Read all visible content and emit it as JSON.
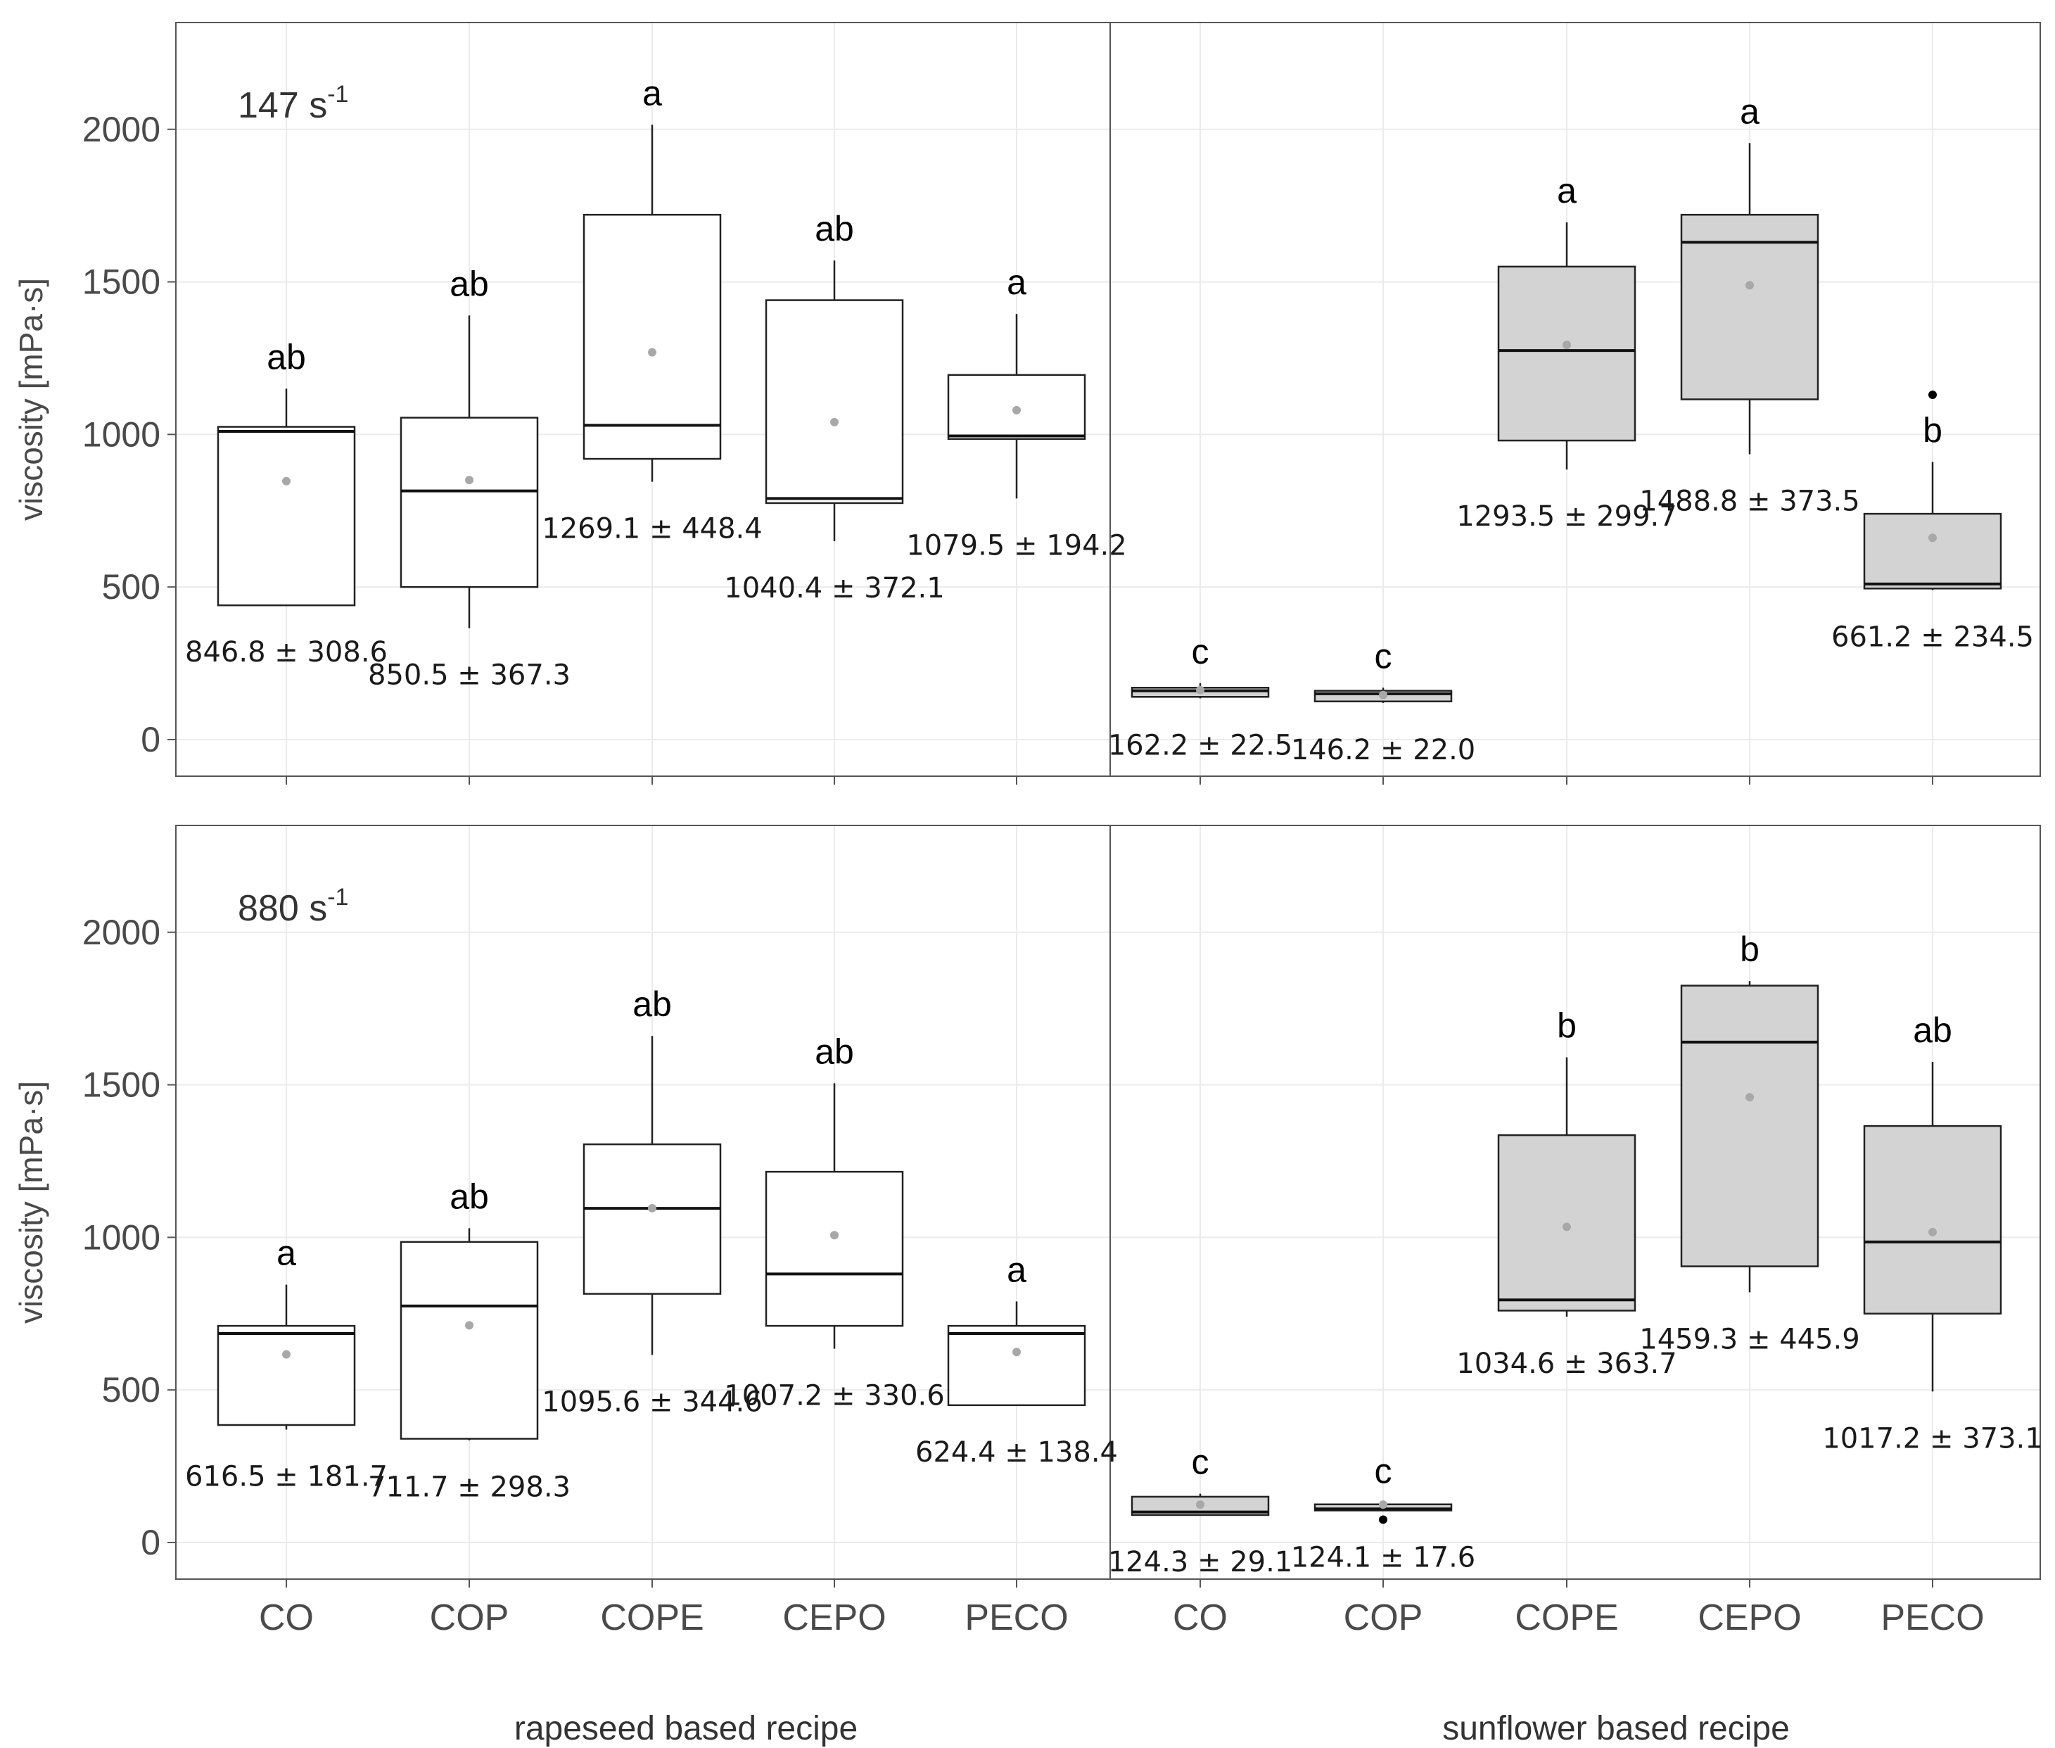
{
  "chart_data": {
    "type": "boxplot",
    "ylabel": "viscosity [mPa·s]",
    "ylim": [
      -120,
      2350
    ],
    "y_ticks": [
      0,
      500,
      1000,
      1500,
      2000
    ],
    "x_categories": [
      "CO",
      "COP",
      "COPE",
      "CEPO",
      "PECO",
      "CO",
      "COP",
      "COPE",
      "CEPO",
      "PECO"
    ],
    "groups": [
      {
        "name": "rapeseed based recipe",
        "fill": "#ffffff"
      },
      {
        "name": "sunflower based recipe",
        "fill": "#d3d3d3"
      }
    ],
    "colors": {
      "sunflower_fill": "#d3d3d3",
      "rapeseed_fill": "#ffffff",
      "mean_dot": "#a8a8a8",
      "grid": "#ebebeb"
    },
    "panels": [
      {
        "rate": "147 s",
        "rate_sup": "-1",
        "boxes": [
          {
            "group": 0,
            "category": "CO",
            "whisker_low": 440,
            "q1": 440,
            "median": 1010,
            "q3": 1025,
            "whisker_high": 1150,
            "mean": 846.8,
            "label": "846.8 ± 308.6",
            "letter": "ab",
            "outliers": []
          },
          {
            "group": 0,
            "category": "COP",
            "whisker_low": 365,
            "q1": 500,
            "median": 815,
            "q3": 1055,
            "whisker_high": 1390,
            "mean": 850.5,
            "label": "850.5 ± 367.3",
            "letter": "ab",
            "outliers": []
          },
          {
            "group": 0,
            "category": "COPE",
            "whisker_low": 845,
            "q1": 920,
            "median": 1030,
            "q3": 1720,
            "whisker_high": 2015,
            "mean": 1269.1,
            "label": "1269.1 ± 448.4",
            "letter": "a",
            "outliers": []
          },
          {
            "group": 0,
            "category": "CEPO",
            "whisker_low": 650,
            "q1": 775,
            "median": 790,
            "q3": 1440,
            "whisker_high": 1570,
            "mean": 1040.4,
            "label": "1040.4 ± 372.1",
            "letter": "ab",
            "outliers": []
          },
          {
            "group": 0,
            "category": "PECO",
            "whisker_low": 790,
            "q1": 985,
            "median": 995,
            "q3": 1195,
            "whisker_high": 1395,
            "mean": 1079.5,
            "label": "1079.5 ± 194.2",
            "letter": "a",
            "outliers": []
          },
          {
            "group": 1,
            "category": "CO",
            "whisker_low": 135,
            "q1": 140,
            "median": 160,
            "q3": 170,
            "whisker_high": 185,
            "mean": 162.2,
            "label": "162.2 ± 22.5",
            "letter": "c",
            "outliers": []
          },
          {
            "group": 1,
            "category": "COP",
            "whisker_low": 120,
            "q1": 125,
            "median": 150,
            "q3": 160,
            "whisker_high": 170,
            "mean": 146.2,
            "label": "146.2 ± 22.0",
            "letter": "c",
            "outliers": []
          },
          {
            "group": 1,
            "category": "COPE",
            "whisker_low": 885,
            "q1": 980,
            "median": 1275,
            "q3": 1550,
            "whisker_high": 1695,
            "mean": 1293.5,
            "label": "1293.5 ± 299.7",
            "letter": "a",
            "outliers": []
          },
          {
            "group": 1,
            "category": "CEPO",
            "whisker_low": 935,
            "q1": 1115,
            "median": 1630,
            "q3": 1720,
            "whisker_high": 1955,
            "mean": 1488.8,
            "label": "1488.8 ± 373.5",
            "letter": "a",
            "outliers": []
          },
          {
            "group": 1,
            "category": "PECO",
            "whisker_low": 490,
            "q1": 495,
            "median": 510,
            "q3": 740,
            "whisker_high": 910,
            "mean": 661.2,
            "label": "661.2 ± 234.5",
            "letter": "b",
            "outliers": [
              1130
            ]
          }
        ]
      },
      {
        "rate": "880 s",
        "rate_sup": "-1",
        "boxes": [
          {
            "group": 0,
            "category": "CO",
            "whisker_low": 370,
            "q1": 385,
            "median": 685,
            "q3": 710,
            "whisker_high": 845,
            "mean": 616.5,
            "label": "616.5 ± 181.7",
            "letter": "a",
            "outliers": []
          },
          {
            "group": 0,
            "category": "COP",
            "whisker_low": 335,
            "q1": 340,
            "median": 775,
            "q3": 985,
            "whisker_high": 1030,
            "mean": 711.7,
            "label": "711.7 ± 298.3",
            "letter": "ab",
            "outliers": []
          },
          {
            "group": 0,
            "category": "COPE",
            "whisker_low": 615,
            "q1": 815,
            "median": 1095,
            "q3": 1305,
            "whisker_high": 1660,
            "mean": 1095.6,
            "label": "1095.6 ± 344.6",
            "letter": "ab",
            "outliers": []
          },
          {
            "group": 0,
            "category": "CEPO",
            "whisker_low": 635,
            "q1": 710,
            "median": 880,
            "q3": 1215,
            "whisker_high": 1505,
            "mean": 1007.2,
            "label": "1007.2 ± 330.6",
            "letter": "ab",
            "outliers": []
          },
          {
            "group": 0,
            "category": "PECO",
            "whisker_low": 450,
            "q1": 450,
            "median": 685,
            "q3": 710,
            "whisker_high": 790,
            "mean": 624.4,
            "label": "624.4 ± 138.4",
            "letter": "a",
            "outliers": []
          },
          {
            "group": 1,
            "category": "CO",
            "whisker_low": 90,
            "q1": 90,
            "median": 100,
            "q3": 150,
            "whisker_high": 160,
            "mean": 124.3,
            "label": "124.3 ± 29.1",
            "letter": "c",
            "outliers": []
          },
          {
            "group": 1,
            "category": "COP",
            "whisker_low": 105,
            "q1": 105,
            "median": 110,
            "q3": 125,
            "whisker_high": 130,
            "mean": 124.1,
            "label": "124.1 ± 17.6",
            "letter": "c",
            "outliers": [
              75
            ]
          },
          {
            "group": 1,
            "category": "COPE",
            "whisker_low": 740,
            "q1": 760,
            "median": 795,
            "q3": 1335,
            "whisker_high": 1590,
            "mean": 1034.6,
            "label": "1034.6 ± 363.7",
            "letter": "b",
            "outliers": []
          },
          {
            "group": 1,
            "category": "CEPO",
            "whisker_low": 820,
            "q1": 905,
            "median": 1640,
            "q3": 1825,
            "whisker_high": 1840,
            "mean": 1459.3,
            "label": "1459.3 ± 445.9",
            "letter": "b",
            "outliers": []
          },
          {
            "group": 1,
            "category": "PECO",
            "whisker_low": 495,
            "q1": 750,
            "median": 985,
            "q3": 1365,
            "whisker_high": 1575,
            "mean": 1017.2,
            "label": "1017.2 ± 373.1",
            "letter": "ab",
            "outliers": []
          }
        ]
      }
    ]
  }
}
